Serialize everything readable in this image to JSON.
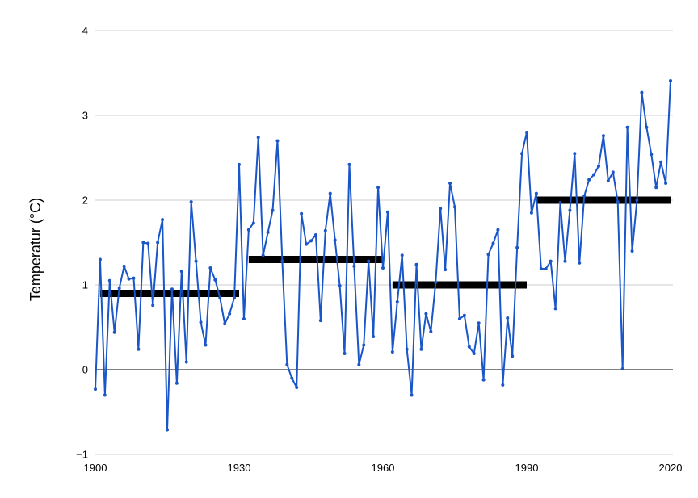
{
  "chart_data": {
    "type": "line",
    "ylabel": "Temperatur (°C)",
    "xlabel": "",
    "title": "",
    "xlim": [
      1900,
      2020
    ],
    "ylim": [
      -1,
      4
    ],
    "x_ticks": [
      1900,
      1930,
      1960,
      1990,
      2020
    ],
    "x_tick_labels": [
      "1900",
      "1930",
      "1960",
      "1990",
      "2020"
    ],
    "y_ticks": [
      -1,
      0,
      1,
      2,
      3,
      4
    ],
    "y_tick_labels": [
      "−1",
      "0",
      "1",
      "2",
      "3",
      "4"
    ],
    "grid": "horizontal",
    "legend": "none",
    "colors": {
      "series": "#1a56c8",
      "averages": "#000000",
      "grid": "#cccccc",
      "zero_line": "#000000"
    },
    "series": [
      {
        "x": [
          1900,
          1901,
          1902,
          1903,
          1904,
          1905,
          1906,
          1907,
          1908,
          1909,
          1910,
          1911,
          1912,
          1913,
          1914,
          1915,
          1916,
          1917,
          1918,
          1919,
          1920,
          1921,
          1922,
          1923,
          1924,
          1925,
          1926,
          1927,
          1928,
          1929,
          1930,
          1931,
          1932,
          1933,
          1934,
          1935,
          1936,
          1937,
          1938,
          1939,
          1940,
          1941,
          1942,
          1943,
          1944,
          1945,
          1946,
          1947,
          1948,
          1949,
          1950,
          1951,
          1952,
          1953,
          1954,
          1955,
          1956,
          1957,
          1958,
          1959,
          1960,
          1961,
          1962,
          1963,
          1964,
          1965,
          1966,
          1967,
          1968,
          1969,
          1970,
          1971,
          1972,
          1973,
          1974,
          1975,
          1976,
          1977,
          1978,
          1979,
          1980,
          1981,
          1982,
          1983,
          1984,
          1985,
          1986,
          1987,
          1988,
          1989,
          1990,
          1991,
          1992,
          1993,
          1994,
          1995,
          1996,
          1997,
          1998,
          1999,
          2000,
          2001,
          2002,
          2003,
          2004,
          2005,
          2006,
          2007,
          2008,
          2009,
          2010,
          2011,
          2012,
          2013,
          2014,
          2015,
          2016,
          2017,
          2018,
          2019,
          2020
        ],
        "values": [
          -0.23,
          1.3,
          -0.3,
          1.05,
          0.44,
          0.96,
          1.22,
          1.07,
          1.08,
          0.24,
          1.5,
          1.49,
          0.76,
          1.5,
          1.77,
          -0.71,
          0.95,
          -0.16,
          1.16,
          0.09,
          1.98,
          1.28,
          0.56,
          0.29,
          1.2,
          1.06,
          0.85,
          0.54,
          0.66,
          0.85,
          2.42,
          0.6,
          1.65,
          1.73,
          2.74,
          1.35,
          1.62,
          1.88,
          2.7,
          1.28,
          0.06,
          -0.1,
          -0.21,
          1.84,
          1.48,
          1.52,
          1.59,
          0.58,
          1.64,
          2.08,
          1.53,
          0.99,
          0.19,
          2.42,
          1.22,
          0.06,
          0.29,
          1.28,
          0.39,
          2.15,
          1.2,
          1.86,
          0.21,
          0.8,
          1.35,
          0.24,
          -0.3,
          1.24,
          0.24,
          0.66,
          0.45,
          1.03,
          1.9,
          1.18,
          2.2,
          1.92,
          0.6,
          0.64,
          0.27,
          0.19,
          0.55,
          -0.12,
          1.36,
          1.49,
          1.65,
          -0.18,
          0.61,
          0.16,
          1.44,
          2.55,
          2.8,
          1.85,
          2.08,
          1.19,
          1.19,
          1.28,
          0.72,
          1.97,
          1.28,
          1.88,
          2.55,
          1.26,
          2.05,
          2.24,
          2.3,
          2.4,
          2.76,
          2.23,
          2.33,
          1.98,
          0.01,
          2.86,
          1.4,
          2.0,
          3.27,
          2.86,
          2.54,
          2.15,
          2.45,
          2.2,
          3.41
        ]
      }
    ],
    "averages": [
      {
        "x_start": 1901,
        "x_end": 1930,
        "value": 0.9
      },
      {
        "x_start": 1932,
        "x_end": 1960,
        "value": 1.3
      },
      {
        "x_start": 1962,
        "x_end": 1990,
        "value": 1.0
      },
      {
        "x_start": 1992,
        "x_end": 2020,
        "value": 2.0
      }
    ]
  }
}
